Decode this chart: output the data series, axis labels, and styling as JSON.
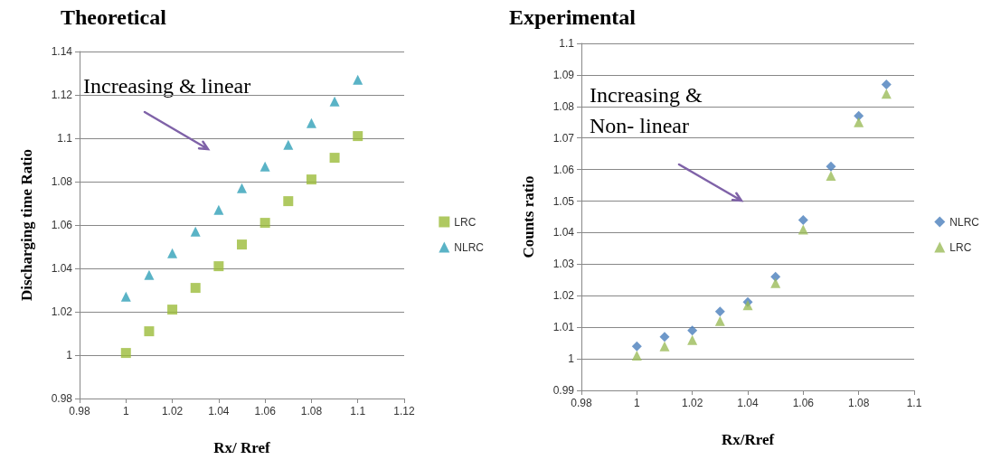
{
  "chart_data": [
    {
      "type": "scatter",
      "title": "Theoretical",
      "xlabel": "Rx/ Rref",
      "ylabel": "Discharging time Ratio",
      "x": [
        1,
        1.01,
        1.02,
        1.03,
        1.04,
        1.05,
        1.06,
        1.07,
        1.08,
        1.09,
        1.1
      ],
      "series": [
        {
          "name": "LRC",
          "color": "#9bbb3a",
          "marker": "square",
          "values": [
            1.001,
            1.011,
            1.021,
            1.031,
            1.041,
            1.051,
            1.061,
            1.071,
            1.081,
            1.091,
            1.101
          ]
        },
        {
          "name": "NLRC",
          "color": "#31a0b8",
          "marker": "triangle",
          "values": [
            1.027,
            1.037,
            1.047,
            1.057,
            1.067,
            1.077,
            1.087,
            1.097,
            1.107,
            1.117,
            1.127
          ]
        }
      ],
      "xlim": [
        0.98,
        1.12
      ],
      "xticks": [
        0.98,
        1,
        1.02,
        1.04,
        1.06,
        1.08,
        1.1,
        1.12
      ],
      "ylim": [
        0.98,
        1.14
      ],
      "yticks": [
        0.98,
        1,
        1.02,
        1.04,
        1.06,
        1.08,
        1.1,
        1.12,
        1.14
      ],
      "grid": "y",
      "legend": "right",
      "annotations": [
        "Increasing & linear"
      ]
    },
    {
      "type": "scatter",
      "title": "Experimental",
      "xlabel": "Rx/Rref",
      "ylabel": "Counts ratio",
      "x": [
        1,
        1.01,
        1.02,
        1.03,
        1.04,
        1.05,
        1.06,
        1.07,
        1.08,
        1.09
      ],
      "series": [
        {
          "name": "NLRC",
          "color": "#4a7ebb",
          "marker": "diamond",
          "values": [
            1.004,
            1.007,
            1.009,
            1.015,
            1.018,
            1.026,
            1.044,
            1.061,
            1.077,
            1.087
          ]
        },
        {
          "name": "LRC",
          "color": "#9bbb59",
          "marker": "triangle",
          "values": [
            1.001,
            1.004,
            1.006,
            1.012,
            1.017,
            1.024,
            1.041,
            1.058,
            1.075,
            1.084
          ]
        }
      ],
      "xlim": [
        0.98,
        1.1
      ],
      "xticks": [
        0.98,
        1,
        1.02,
        1.04,
        1.06,
        1.08,
        1.1
      ],
      "ylim": [
        0.99,
        1.1
      ],
      "yticks": [
        0.99,
        1,
        1.01,
        1.02,
        1.03,
        1.04,
        1.05,
        1.06,
        1.07,
        1.08,
        1.09,
        1.1
      ],
      "grid": "y",
      "legend": "right",
      "annotations": [
        "Increasing &\nNon- linear"
      ]
    }
  ]
}
